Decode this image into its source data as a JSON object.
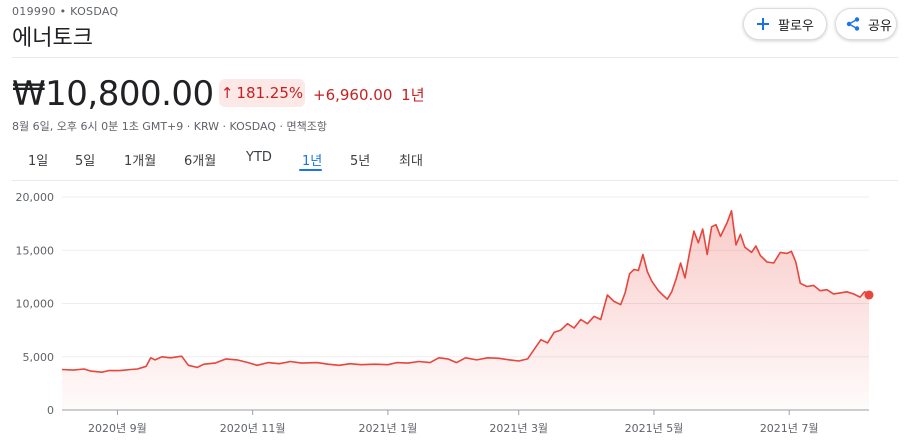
{
  "header": {
    "ticker": "019990 • KOSDAQ",
    "company": "에너토크",
    "follow_label": "팔로우",
    "share_label": "공유"
  },
  "quote": {
    "price": "₩10,800.00",
    "percent": "181.25%",
    "change": "+6,960.00",
    "period": "1년",
    "meta": "8월 6일, 오후 6시 0분 1초 GMT+9 · KRW · KOSDAQ · 면책조항"
  },
  "tabs": [
    {
      "label": "1일"
    },
    {
      "label": "5일"
    },
    {
      "label": "1개월"
    },
    {
      "label": "6개월"
    },
    {
      "label": "YTD"
    },
    {
      "label": "1년",
      "active": true
    },
    {
      "label": "5년"
    },
    {
      "label": "최대"
    }
  ],
  "colors": {
    "line": "#e8453c",
    "fill": "#fce8e6",
    "negative_text": "#c5221f",
    "active_tab": "#1a73e8"
  },
  "chart_data": {
    "type": "area",
    "ylim": [
      0,
      20000
    ],
    "y_ticks": [
      {
        "value": 0,
        "label": "0"
      },
      {
        "value": 5000,
        "label": "5,000"
      },
      {
        "value": 10000,
        "label": "10,000"
      },
      {
        "value": 15000,
        "label": "15,000"
      },
      {
        "value": 20000,
        "label": "20,000"
      }
    ],
    "x_ticks": [
      {
        "date": "2020-09-01",
        "label": "2020년 9월"
      },
      {
        "date": "2020-11-01",
        "label": "2020년 11월"
      },
      {
        "date": "2021-01-01",
        "label": "2021년 1월"
      },
      {
        "date": "2021-03-01",
        "label": "2021년 3월"
      },
      {
        "date": "2021-05-01",
        "label": "2021년 5월"
      },
      {
        "date": "2021-07-01",
        "label": "2021년 7월"
      }
    ],
    "x_range": [
      "2020-08-07",
      "2021-08-06"
    ],
    "series": [
      {
        "points": [
          [
            "2020-08-07",
            3800
          ],
          [
            "2020-08-12",
            3750
          ],
          [
            "2020-08-17",
            3850
          ],
          [
            "2020-08-20",
            3650
          ],
          [
            "2020-08-25",
            3550
          ],
          [
            "2020-08-28",
            3700
          ],
          [
            "2020-09-02",
            3700
          ],
          [
            "2020-09-07",
            3800
          ],
          [
            "2020-09-10",
            3850
          ],
          [
            "2020-09-14",
            4100
          ],
          [
            "2020-09-16",
            4900
          ],
          [
            "2020-09-18",
            4700
          ],
          [
            "2020-09-21",
            5000
          ],
          [
            "2020-09-25",
            4900
          ],
          [
            "2020-09-30",
            5050
          ],
          [
            "2020-10-03",
            4200
          ],
          [
            "2020-10-07",
            4000
          ],
          [
            "2020-10-10",
            4300
          ],
          [
            "2020-10-15",
            4400
          ],
          [
            "2020-10-20",
            4800
          ],
          [
            "2020-10-25",
            4700
          ],
          [
            "2020-10-30",
            4450
          ],
          [
            "2020-11-03",
            4200
          ],
          [
            "2020-11-08",
            4450
          ],
          [
            "2020-11-13",
            4350
          ],
          [
            "2020-11-18",
            4550
          ],
          [
            "2020-11-23",
            4400
          ],
          [
            "2020-11-30",
            4450
          ],
          [
            "2020-12-05",
            4300
          ],
          [
            "2020-12-10",
            4200
          ],
          [
            "2020-12-15",
            4350
          ],
          [
            "2020-12-20",
            4250
          ],
          [
            "2020-12-26",
            4300
          ],
          [
            "2021-01-01",
            4250
          ],
          [
            "2021-01-05",
            4450
          ],
          [
            "2021-01-10",
            4400
          ],
          [
            "2021-01-15",
            4550
          ],
          [
            "2021-01-20",
            4450
          ],
          [
            "2021-01-24",
            4900
          ],
          [
            "2021-01-28",
            4800
          ],
          [
            "2021-02-01",
            4450
          ],
          [
            "2021-02-05",
            4900
          ],
          [
            "2021-02-10",
            4700
          ],
          [
            "2021-02-15",
            4900
          ],
          [
            "2021-02-20",
            4850
          ],
          [
            "2021-02-25",
            4700
          ],
          [
            "2021-03-01",
            4600
          ],
          [
            "2021-03-05",
            4800
          ],
          [
            "2021-03-08",
            5700
          ],
          [
            "2021-03-11",
            6600
          ],
          [
            "2021-03-14",
            6300
          ],
          [
            "2021-03-17",
            7300
          ],
          [
            "2021-03-20",
            7500
          ],
          [
            "2021-03-23",
            8100
          ],
          [
            "2021-03-26",
            7700
          ],
          [
            "2021-03-29",
            8500
          ],
          [
            "2021-04-01",
            8100
          ],
          [
            "2021-04-04",
            8800
          ],
          [
            "2021-04-07",
            8500
          ],
          [
            "2021-04-10",
            10800
          ],
          [
            "2021-04-13",
            10200
          ],
          [
            "2021-04-16",
            9900
          ],
          [
            "2021-04-18",
            11000
          ],
          [
            "2021-04-20",
            12800
          ],
          [
            "2021-04-22",
            13200
          ],
          [
            "2021-04-24",
            13100
          ],
          [
            "2021-04-26",
            14600
          ],
          [
            "2021-04-28",
            13000
          ],
          [
            "2021-04-30",
            12100
          ],
          [
            "2021-05-03",
            11200
          ],
          [
            "2021-05-05",
            10800
          ],
          [
            "2021-05-07",
            10400
          ],
          [
            "2021-05-09",
            11100
          ],
          [
            "2021-05-11",
            12300
          ],
          [
            "2021-05-13",
            13800
          ],
          [
            "2021-05-15",
            12400
          ],
          [
            "2021-05-17",
            14700
          ],
          [
            "2021-05-19",
            16800
          ],
          [
            "2021-05-21",
            15700
          ],
          [
            "2021-05-23",
            17000
          ],
          [
            "2021-05-25",
            14600
          ],
          [
            "2021-05-27",
            17200
          ],
          [
            "2021-05-29",
            17400
          ],
          [
            "2021-05-31",
            16300
          ],
          [
            "2021-06-03",
            17600
          ],
          [
            "2021-06-05",
            18700
          ],
          [
            "2021-06-07",
            15500
          ],
          [
            "2021-06-09",
            16500
          ],
          [
            "2021-06-11",
            15300
          ],
          [
            "2021-06-14",
            14800
          ],
          [
            "2021-06-16",
            15400
          ],
          [
            "2021-06-18",
            14500
          ],
          [
            "2021-06-21",
            13900
          ],
          [
            "2021-06-24",
            13800
          ],
          [
            "2021-06-27",
            14800
          ],
          [
            "2021-06-30",
            14700
          ],
          [
            "2021-07-02",
            14900
          ],
          [
            "2021-07-04",
            13900
          ],
          [
            "2021-07-06",
            11900
          ],
          [
            "2021-07-09",
            11600
          ],
          [
            "2021-07-12",
            11700
          ],
          [
            "2021-07-15",
            11200
          ],
          [
            "2021-07-18",
            11300
          ],
          [
            "2021-07-21",
            10900
          ],
          [
            "2021-07-24",
            11000
          ],
          [
            "2021-07-27",
            11100
          ],
          [
            "2021-07-30",
            10900
          ],
          [
            "2021-08-02",
            10600
          ],
          [
            "2021-08-04",
            11100
          ],
          [
            "2021-08-06",
            10800
          ]
        ]
      }
    ]
  }
}
